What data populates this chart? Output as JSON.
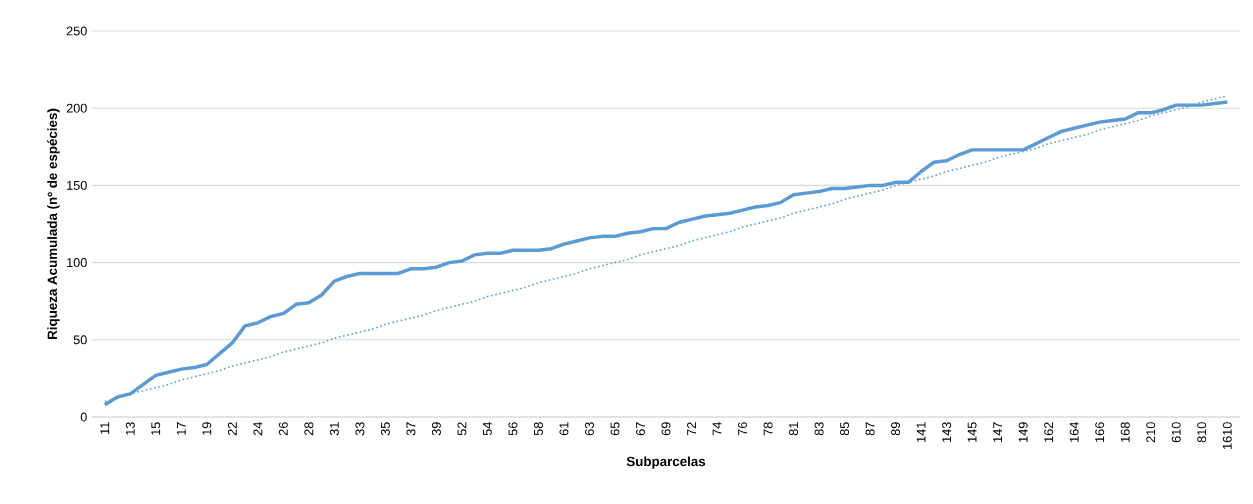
{
  "chart_data": {
    "type": "line",
    "xlabel": "Subparcelas",
    "ylabel": "Riqueza Acumulada (nº de espécies)",
    "categories": [
      "11",
      null,
      "13",
      null,
      "15",
      null,
      "17",
      null,
      "19",
      null,
      "22",
      null,
      "24",
      null,
      "26",
      null,
      "28",
      null,
      "31",
      null,
      "33",
      null,
      "35",
      null,
      "37",
      null,
      "39",
      null,
      "52",
      null,
      "54",
      null,
      "56",
      null,
      "58",
      null,
      "61",
      null,
      "63",
      null,
      "65",
      null,
      "67",
      null,
      "69",
      null,
      "72",
      null,
      "74",
      null,
      "76",
      null,
      "78",
      null,
      "81",
      null,
      "83",
      null,
      "85",
      null,
      "87",
      null,
      "89",
      null,
      "141",
      null,
      "143",
      null,
      "145",
      null,
      "147",
      null,
      "149",
      null,
      "162",
      null,
      "164",
      null,
      "166",
      null,
      "168",
      null,
      "210",
      null,
      "610",
      null,
      "810",
      null,
      "1610"
    ],
    "series": [
      {
        "color": "#5b9bd5",
        "line_style": "solid",
        "values": [
          8,
          13,
          15,
          21,
          27,
          29,
          31,
          32,
          34,
          41,
          48,
          59,
          61,
          65,
          67,
          73,
          74,
          79,
          88,
          91,
          93,
          93,
          93,
          93,
          96,
          96,
          97,
          100,
          101,
          105,
          106,
          106,
          108,
          108,
          108,
          109,
          112,
          114,
          116,
          117,
          117,
          119,
          120,
          122,
          122,
          126,
          128,
          130,
          131,
          132,
          134,
          136,
          137,
          139,
          144,
          145,
          146,
          148,
          148,
          149,
          150,
          150,
          152,
          152,
          159,
          165,
          166,
          170,
          173,
          173,
          173,
          173,
          173,
          177,
          181,
          185,
          187,
          189,
          191,
          192,
          193,
          197,
          197,
          199,
          202,
          202,
          202,
          203,
          204
        ]
      },
      {
        "color": "#5b9bd5",
        "line_style": "dotted",
        "values": [
          10,
          12,
          15,
          17,
          19,
          21,
          24,
          26,
          28,
          30,
          33,
          35,
          37,
          39,
          42,
          44,
          46,
          48,
          51,
          53,
          55,
          57,
          60,
          62,
          64,
          66,
          69,
          71,
          73,
          75,
          78,
          80,
          82,
          84,
          87,
          89,
          91,
          93,
          96,
          98,
          100,
          102,
          105,
          107,
          109,
          111,
          114,
          116,
          118,
          120,
          123,
          125,
          127,
          129,
          132,
          134,
          136,
          138,
          141,
          143,
          145,
          147,
          150,
          152,
          154,
          156,
          159,
          161,
          163,
          165,
          168,
          170,
          172,
          174,
          177,
          179,
          181,
          183,
          186,
          188,
          190,
          192,
          195,
          197,
          199,
          201,
          204,
          206,
          208
        ]
      }
    ],
    "ylim": [
      0,
      250
    ],
    "yticks": [
      0,
      50,
      100,
      150,
      200,
      250
    ],
    "grid": "y",
    "marker": "none"
  }
}
